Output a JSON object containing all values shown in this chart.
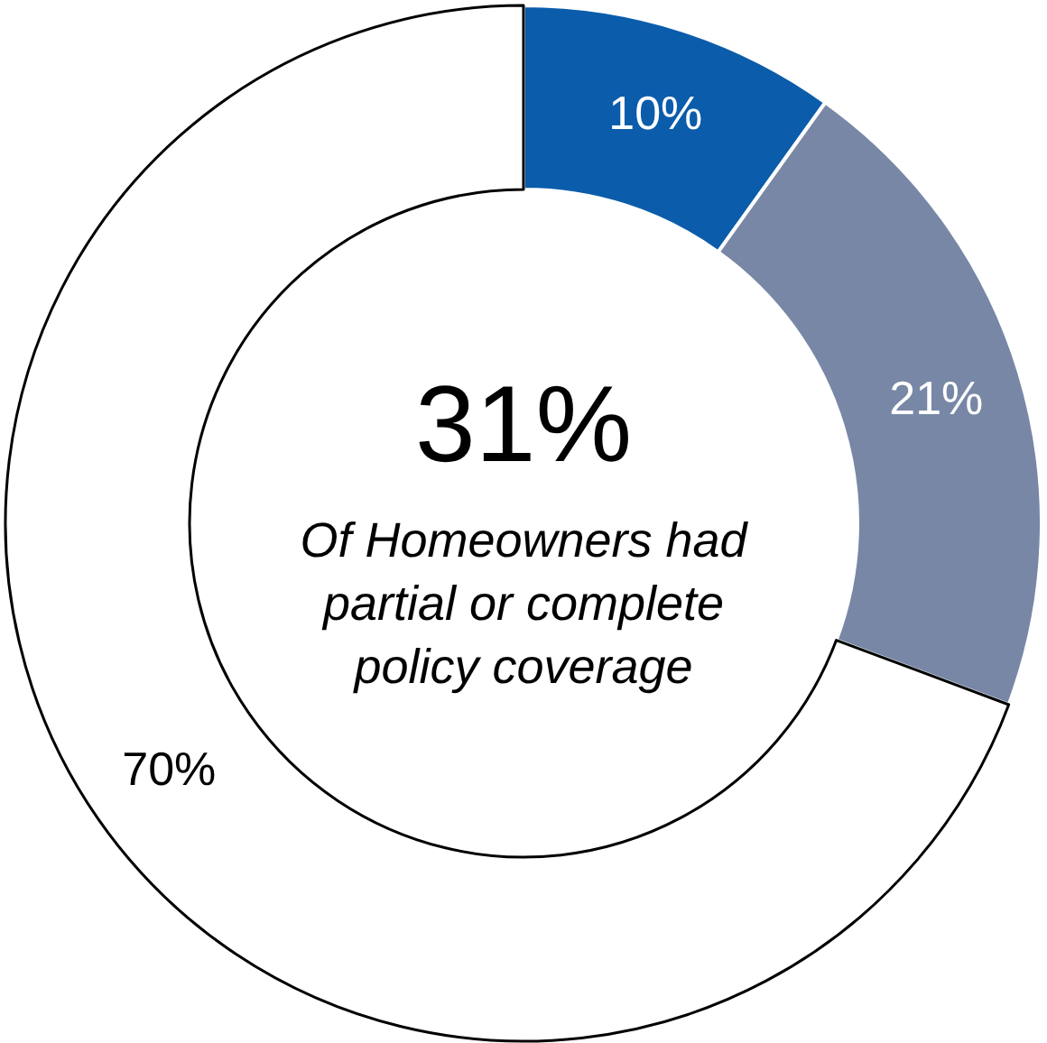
{
  "chart_data": {
    "type": "donut",
    "categories": [
      null,
      null,
      null
    ],
    "values": [
      10,
      21,
      70
    ],
    "colors": [
      "#0b5cab",
      "#7887a6",
      "#ffffff"
    ],
    "value_labels": [
      "10%",
      "21%",
      "70%"
    ],
    "legend": false,
    "annotations": [
      "31%",
      "Of Homeowners had partial or complete policy coverage"
    ]
  }
}
